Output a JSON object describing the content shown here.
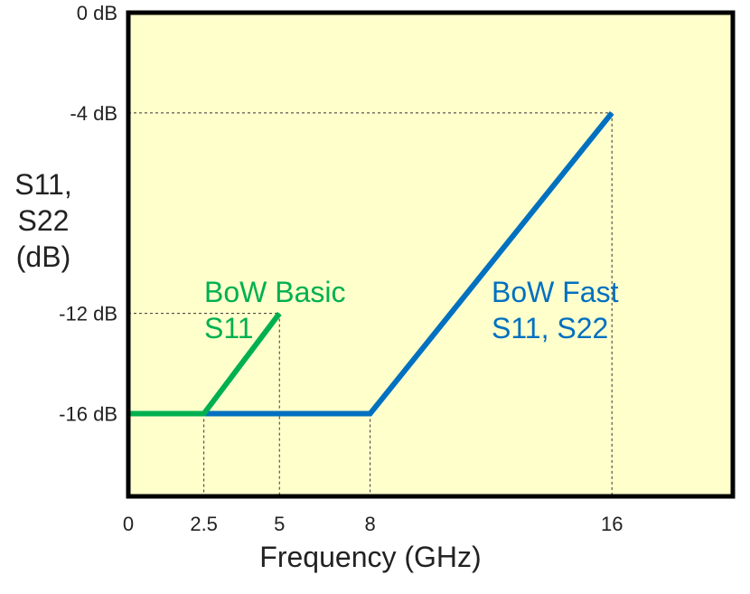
{
  "chart_data": {
    "type": "line",
    "xlabel": "Frequency (GHz)",
    "ylabel_lines": [
      "S11,",
      "S22",
      "(dB)"
    ],
    "xlim": [
      0,
      20
    ],
    "ylim": [
      -19.3,
      0
    ],
    "x_ticks": [
      {
        "value": 0,
        "label": "0"
      },
      {
        "value": 2.5,
        "label": "2.5"
      },
      {
        "value": 5,
        "label": "5"
      },
      {
        "value": 8,
        "label": "8"
      },
      {
        "value": 16,
        "label": "16"
      }
    ],
    "y_ticks": [
      {
        "value": 0,
        "label": "0 dB"
      },
      {
        "value": -4,
        "label": "-4 dB"
      },
      {
        "value": -12,
        "label": "-12 dB"
      },
      {
        "value": -16,
        "label": "-16 dB"
      }
    ],
    "guides": [
      {
        "from": [
          16,
          -4
        ],
        "horizontal_to_x": 0,
        "vertical_to_y": -19.3
      },
      {
        "from": [
          5,
          -12
        ],
        "horizontal_to_x": 0,
        "vertical_to_y": -19.3
      },
      {
        "from": [
          8,
          -16
        ],
        "vertical_to_y": -19.3
      },
      {
        "from": [
          2.5,
          -16
        ],
        "vertical_to_y": -19.3
      }
    ],
    "series": [
      {
        "name": "BoW Fast S11, S22",
        "color": "#0070c0",
        "x": [
          0,
          8,
          16
        ],
        "y": [
          -16,
          -16,
          -4
        ]
      },
      {
        "name": "BoW Basic S11",
        "color": "#00b050",
        "x": [
          0,
          2.5,
          5
        ],
        "y": [
          -16,
          -16,
          -12
        ]
      }
    ],
    "annotations": [
      {
        "lines": [
          "BoW Basic",
          "S11"
        ],
        "color": "#00b050"
      },
      {
        "lines": [
          "BoW Fast",
          "S11, S22"
        ],
        "color": "#0070c0"
      }
    ],
    "plot_background": "#ffffcc",
    "frame_color": "#000000",
    "grid": false
  }
}
